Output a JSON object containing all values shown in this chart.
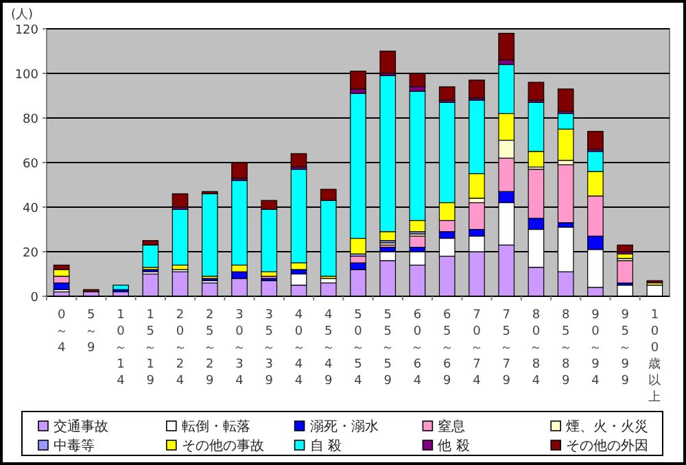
{
  "chart_data": {
    "type": "bar",
    "stacked": true,
    "ylabel": "(人)",
    "categories": [
      "0～4",
      "5～9",
      "10～14",
      "15～19",
      "20～24",
      "25～29",
      "30～34",
      "35～39",
      "40～44",
      "45～49",
      "50～54",
      "55～59",
      "60～64",
      "65～69",
      "70～74",
      "75～79",
      "80～84",
      "85～89",
      "90～94",
      "95～99",
      "100歳以上"
    ],
    "series": [
      {
        "name": "交通事故",
        "color": "#cc99ff",
        "values": [
          2,
          2,
          2,
          10,
          11,
          6,
          8,
          7,
          5,
          6,
          12,
          16,
          14,
          18,
          20,
          23,
          13,
          11,
          4,
          0,
          0
        ]
      },
      {
        "name": "転倒・転落",
        "color": "#ffffff",
        "values": [
          1,
          0,
          0,
          1,
          1,
          1,
          0,
          0,
          5,
          2,
          0,
          4,
          6,
          8,
          7,
          19,
          17,
          20,
          17,
          5,
          5
        ]
      },
      {
        "name": "溺死・溺水",
        "color": "#0000ff",
        "values": [
          3,
          0,
          1,
          1,
          0,
          1,
          3,
          1,
          2,
          0,
          3,
          2,
          2,
          3,
          3,
          5,
          5,
          2,
          6,
          1,
          0
        ]
      },
      {
        "name": "窒息",
        "color": "#ff99cc",
        "values": [
          3,
          0,
          0,
          0,
          0,
          0,
          0,
          1,
          0,
          0,
          3,
          1,
          5,
          5,
          12,
          15,
          22,
          26,
          18,
          10,
          0
        ]
      },
      {
        "name": "煙、火・火災",
        "color": "#ffffcc",
        "values": [
          0,
          0,
          0,
          0,
          0,
          0,
          0,
          0,
          0,
          0,
          0,
          1,
          1,
          0,
          2,
          8,
          1,
          2,
          0,
          1,
          0
        ]
      },
      {
        "name": "中毒等",
        "color": "#9999ff",
        "values": [
          0,
          0,
          0,
          0,
          0,
          0,
          0,
          0,
          0,
          0,
          1,
          1,
          1,
          0,
          0,
          0,
          0,
          0,
          0,
          0,
          0
        ]
      },
      {
        "name": "その他の事故",
        "color": "#ffff00",
        "values": [
          3,
          0,
          0,
          1,
          2,
          1,
          3,
          2,
          3,
          1,
          7,
          4,
          5,
          8,
          11,
          12,
          7,
          14,
          11,
          2,
          1
        ]
      },
      {
        "name": "自 殺",
        "color": "#00ffff",
        "values": [
          0,
          0,
          2,
          10,
          25,
          37,
          38,
          28,
          42,
          34,
          65,
          70,
          58,
          45,
          33,
          22,
          22,
          7,
          9,
          0,
          0
        ]
      },
      {
        "name": "他 殺",
        "color": "#800080",
        "values": [
          0,
          0,
          0,
          0,
          1,
          0,
          1,
          0,
          1,
          0,
          2,
          1,
          2,
          1,
          1,
          2,
          1,
          1,
          1,
          1,
          0
        ]
      },
      {
        "name": "その他の外因",
        "color": "#800000",
        "values": [
          2,
          1,
          0,
          2,
          6,
          1,
          7,
          4,
          6,
          5,
          8,
          10,
          6,
          6,
          8,
          12,
          8,
          10,
          8,
          3,
          1
        ]
      }
    ],
    "ylim": [
      0,
      120
    ],
    "yticks": [
      0,
      20,
      40,
      60,
      80,
      100,
      120
    ],
    "grid": "y",
    "legend": "bottom"
  }
}
